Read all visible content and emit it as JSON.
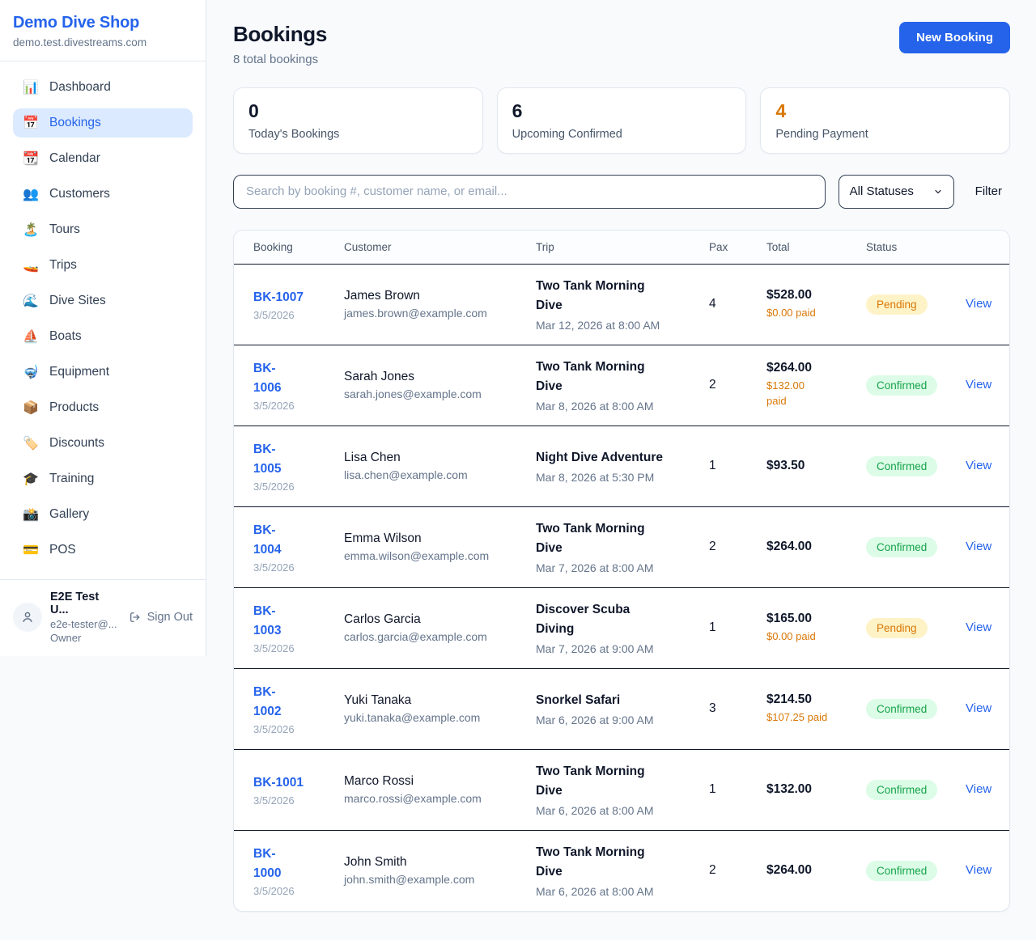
{
  "theme": {
    "accent": "#2563eb",
    "pending_color": "#d97706",
    "pending_bg": "#fef3c7",
    "confirmed_color": "#16a34a",
    "confirmed_bg": "#dcfce7",
    "page_bg": "#f8fafc"
  },
  "sidebar": {
    "brand": "Demo Dive Shop",
    "domain": "demo.test.divestreams.com",
    "items": [
      {
        "id": "dashboard",
        "label": "Dashboard",
        "icon": "bar-chart",
        "glyph": "📊",
        "active": false
      },
      {
        "id": "bookings",
        "label": "Bookings",
        "icon": "calendar",
        "glyph": "📅",
        "active": true
      },
      {
        "id": "calendar",
        "label": "Calendar",
        "icon": "tearoff-calendar",
        "glyph": "📆",
        "active": false
      },
      {
        "id": "customers",
        "label": "Customers",
        "icon": "people",
        "glyph": "👥",
        "active": false
      },
      {
        "id": "tours",
        "label": "Tours",
        "icon": "island",
        "glyph": "🏝️",
        "active": false
      },
      {
        "id": "trips",
        "label": "Trips",
        "icon": "speedboat",
        "glyph": "🚤",
        "active": false
      },
      {
        "id": "dive-sites",
        "label": "Dive Sites",
        "icon": "wave",
        "glyph": "🌊",
        "active": false
      },
      {
        "id": "boats",
        "label": "Boats",
        "icon": "sailboat",
        "glyph": "⛵",
        "active": false
      },
      {
        "id": "equipment",
        "label": "Equipment",
        "icon": "diving-mask",
        "glyph": "🤿",
        "active": false
      },
      {
        "id": "products",
        "label": "Products",
        "icon": "package",
        "glyph": "📦",
        "active": false
      },
      {
        "id": "discounts",
        "label": "Discounts",
        "icon": "tag",
        "glyph": "🏷️",
        "active": false
      },
      {
        "id": "training",
        "label": "Training",
        "icon": "graduation-cap",
        "glyph": "🎓",
        "active": false
      },
      {
        "id": "gallery",
        "label": "Gallery",
        "icon": "camera",
        "glyph": "📸",
        "active": false
      },
      {
        "id": "pos",
        "label": "POS",
        "icon": "credit-card",
        "glyph": "💳",
        "active": false
      }
    ],
    "user": {
      "name": "E2E Test U...",
      "email": "e2e-tester@...",
      "role": "Owner",
      "sign_out_label": "Sign Out"
    }
  },
  "header": {
    "title": "Bookings",
    "subtitle": "8 total bookings",
    "new_booking_label": "New Booking"
  },
  "stats": [
    {
      "value": "0",
      "label": "Today's Bookings",
      "accent": false
    },
    {
      "value": "6",
      "label": "Upcoming Confirmed",
      "accent": false
    },
    {
      "value": "4",
      "label": "Pending Payment",
      "accent": true
    }
  ],
  "filters": {
    "search_placeholder": "Search by booking #, customer name, or email...",
    "status_selected": "All Statuses",
    "filter_label": "Filter"
  },
  "table": {
    "columns": [
      "Booking",
      "Customer",
      "Trip",
      "Pax",
      "Total",
      "Status"
    ],
    "view_label": "View",
    "rows": [
      {
        "id": "BK-1007",
        "id_display": "BK-1007",
        "date": "3/5/2026",
        "customer_name": "James Brown",
        "customer_email": "james.brown@example.com",
        "trip_name": "Two Tank Morning\nDive",
        "trip_datetime": "Mar 12, 2026 at 8:00 AM",
        "pax": "4",
        "total": "$528.00",
        "paid": "$0.00 paid",
        "status": "Pending"
      },
      {
        "id": "BK-1006",
        "id_display": "BK-\n1006",
        "date": "3/5/2026",
        "customer_name": "Sarah Jones",
        "customer_email": "sarah.jones@example.com",
        "trip_name": "Two Tank Morning\nDive",
        "trip_datetime": "Mar 8, 2026 at 8:00 AM",
        "pax": "2",
        "total": "$264.00",
        "paid": "$132.00\npaid",
        "status": "Confirmed"
      },
      {
        "id": "BK-1005",
        "id_display": "BK-\n1005",
        "date": "3/5/2026",
        "customer_name": "Lisa Chen",
        "customer_email": "lisa.chen@example.com",
        "trip_name": "Night Dive Adventure",
        "trip_datetime": "Mar 8, 2026 at 5:30 PM",
        "pax": "1",
        "total": "$93.50",
        "paid": "",
        "status": "Confirmed"
      },
      {
        "id": "BK-1004",
        "id_display": "BK-\n1004",
        "date": "3/5/2026",
        "customer_name": "Emma Wilson",
        "customer_email": "emma.wilson@example.com",
        "trip_name": "Two Tank Morning\nDive",
        "trip_datetime": "Mar 7, 2026 at 8:00 AM",
        "pax": "2",
        "total": "$264.00",
        "paid": "",
        "status": "Confirmed"
      },
      {
        "id": "BK-1003",
        "id_display": "BK-\n1003",
        "date": "3/5/2026",
        "customer_name": "Carlos Garcia",
        "customer_email": "carlos.garcia@example.com",
        "trip_name": "Discover Scuba\nDiving",
        "trip_datetime": "Mar 7, 2026 at 9:00 AM",
        "pax": "1",
        "total": "$165.00",
        "paid": "$0.00 paid",
        "status": "Pending"
      },
      {
        "id": "BK-1002",
        "id_display": "BK-\n1002",
        "date": "3/5/2026",
        "customer_name": "Yuki Tanaka",
        "customer_email": "yuki.tanaka@example.com",
        "trip_name": "Snorkel Safari",
        "trip_datetime": "Mar 6, 2026 at 9:00 AM",
        "pax": "3",
        "total": "$214.50",
        "paid": "$107.25 paid",
        "status": "Confirmed"
      },
      {
        "id": "BK-1001",
        "id_display": "BK-1001",
        "date": "3/5/2026",
        "customer_name": "Marco Rossi",
        "customer_email": "marco.rossi@example.com",
        "trip_name": "Two Tank Morning\nDive",
        "trip_datetime": "Mar 6, 2026 at 8:00 AM",
        "pax": "1",
        "total": "$132.00",
        "paid": "",
        "status": "Confirmed"
      },
      {
        "id": "BK-1000",
        "id_display": "BK-\n1000",
        "date": "3/5/2026",
        "customer_name": "John Smith",
        "customer_email": "john.smith@example.com",
        "trip_name": "Two Tank Morning\nDive",
        "trip_datetime": "Mar 6, 2026 at 8:00 AM",
        "pax": "2",
        "total": "$264.00",
        "paid": "",
        "status": "Confirmed"
      }
    ]
  }
}
